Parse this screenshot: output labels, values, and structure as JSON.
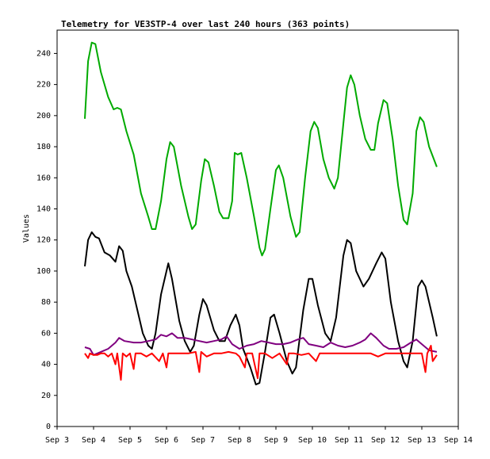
{
  "chart_data": {
    "type": "line",
    "title": "Telemetry for VE3STP-4 over last 240 hours (363 points)",
    "ylabel": "Values",
    "xlim": [
      0,
      11
    ],
    "ylim": [
      0,
      255
    ],
    "xticks": [
      {
        "value": 0,
        "label": "Sep 3"
      },
      {
        "value": 1,
        "label": "Sep 4"
      },
      {
        "value": 2,
        "label": "Sep 5"
      },
      {
        "value": 3,
        "label": "Sep 6"
      },
      {
        "value": 4,
        "label": "Sep 7"
      },
      {
        "value": 5,
        "label": "Sep 8"
      },
      {
        "value": 6,
        "label": "Sep 9"
      },
      {
        "value": 7,
        "label": "Sep 10"
      },
      {
        "value": 8,
        "label": "Sep 11"
      },
      {
        "value": 9,
        "label": "Sep 12"
      },
      {
        "value": 10,
        "label": "Sep 13"
      },
      {
        "value": 11,
        "label": "Sep 14"
      }
    ],
    "yticks": [
      0,
      20,
      40,
      60,
      80,
      100,
      120,
      140,
      160,
      180,
      200,
      220,
      240
    ],
    "series": [
      {
        "color": "#00aa00",
        "x": [
          0.76,
          0.85,
          0.95,
          1.05,
          1.2,
          1.4,
          1.55,
          1.65,
          1.75,
          1.9,
          2.1,
          2.3,
          2.5,
          2.6,
          2.7,
          2.85,
          3.0,
          3.1,
          3.2,
          3.4,
          3.6,
          3.7,
          3.8,
          3.95,
          4.05,
          4.15,
          4.3,
          4.45,
          4.55,
          4.7,
          4.8,
          4.87,
          4.95,
          5.05,
          5.2,
          5.4,
          5.55,
          5.62,
          5.7,
          5.85,
          6.0,
          6.08,
          6.2,
          6.4,
          6.55,
          6.65,
          6.8,
          6.95,
          7.05,
          7.15,
          7.3,
          7.45,
          7.6,
          7.7,
          7.85,
          7.95,
          8.05,
          8.15,
          8.3,
          8.45,
          8.6,
          8.7,
          8.8,
          8.95,
          9.05,
          9.2,
          9.35,
          9.5,
          9.6,
          9.75,
          9.85,
          9.95,
          10.05,
          10.2,
          10.41
        ],
        "values": [
          198,
          235,
          247,
          246,
          228,
          212,
          204,
          205,
          204,
          190,
          175,
          150,
          135,
          127,
          127,
          145,
          172,
          183,
          180,
          155,
          135,
          127,
          130,
          158,
          172,
          170,
          155,
          138,
          134,
          134,
          145,
          176,
          175,
          176,
          160,
          135,
          115,
          110,
          114,
          140,
          165,
          168,
          160,
          135,
          122,
          125,
          160,
          190,
          196,
          192,
          172,
          160,
          153,
          160,
          195,
          218,
          226,
          220,
          200,
          185,
          178,
          178,
          195,
          210,
          208,
          185,
          155,
          133,
          130,
          150,
          190,
          199,
          196,
          180,
          167
        ]
      },
      {
        "color": "#000000",
        "x": [
          0.76,
          0.85,
          0.95,
          1.05,
          1.15,
          1.3,
          1.45,
          1.6,
          1.7,
          1.8,
          1.9,
          2.05,
          2.2,
          2.35,
          2.5,
          2.6,
          2.7,
          2.85,
          3.0,
          3.05,
          3.15,
          3.35,
          3.5,
          3.65,
          3.75,
          3.9,
          4.0,
          4.1,
          4.3,
          4.45,
          4.6,
          4.75,
          4.9,
          5.0,
          5.1,
          5.3,
          5.45,
          5.55,
          5.7,
          5.85,
          5.95,
          6.1,
          6.3,
          6.45,
          6.55,
          6.75,
          6.9,
          7.0,
          7.15,
          7.35,
          7.5,
          7.65,
          7.85,
          7.95,
          8.05,
          8.2,
          8.4,
          8.55,
          8.75,
          8.9,
          9.0,
          9.15,
          9.35,
          9.5,
          9.6,
          9.75,
          9.9,
          10.0,
          10.1,
          10.3,
          10.41
        ],
        "values": [
          103,
          120,
          125,
          122,
          121,
          112,
          110,
          106,
          116,
          113,
          100,
          90,
          75,
          60,
          52,
          50,
          60,
          85,
          100,
          105,
          95,
          68,
          55,
          48,
          52,
          72,
          82,
          78,
          62,
          55,
          55,
          65,
          72,
          65,
          50,
          38,
          27,
          28,
          48,
          70,
          72,
          60,
          42,
          34,
          38,
          75,
          95,
          95,
          78,
          60,
          55,
          70,
          110,
          120,
          118,
          100,
          90,
          95,
          105,
          112,
          108,
          80,
          55,
          42,
          38,
          55,
          90,
          94,
          90,
          70,
          58
        ]
      },
      {
        "color": "#800080",
        "x": [
          0.76,
          0.9,
          1.0,
          1.2,
          1.4,
          1.6,
          1.7,
          1.85,
          2.1,
          2.3,
          2.5,
          2.7,
          2.85,
          3.0,
          3.15,
          3.3,
          3.5,
          3.7,
          3.9,
          4.1,
          4.3,
          4.5,
          4.65,
          4.8,
          5.0,
          5.2,
          5.4,
          5.6,
          5.8,
          6.0,
          6.2,
          6.4,
          6.6,
          6.75,
          6.9,
          7.1,
          7.3,
          7.5,
          7.7,
          7.9,
          8.1,
          8.3,
          8.45,
          8.6,
          8.75,
          8.95,
          9.1,
          9.3,
          9.5,
          9.7,
          9.85,
          10.0,
          10.2,
          10.41
        ],
        "values": [
          51,
          50,
          46,
          48,
          50,
          54,
          57,
          55,
          54,
          54,
          55,
          56,
          59,
          58,
          60,
          57,
          57,
          56,
          55,
          54,
          55,
          56,
          58,
          53,
          50,
          52,
          53,
          55,
          54,
          53,
          53,
          54,
          56,
          57,
          53,
          52,
          51,
          54,
          52,
          51,
          52,
          54,
          56,
          60,
          57,
          52,
          50,
          50,
          51,
          54,
          56,
          53,
          49,
          48
        ]
      },
      {
        "color": "#ff0000",
        "x": [
          0.76,
          0.85,
          0.9,
          1.0,
          1.1,
          1.2,
          1.3,
          1.4,
          1.5,
          1.6,
          1.65,
          1.75,
          1.8,
          1.9,
          2.0,
          2.1,
          2.15,
          2.3,
          2.45,
          2.6,
          2.8,
          2.9,
          3.0,
          3.05,
          3.2,
          3.4,
          3.6,
          3.8,
          3.9,
          3.95,
          4.1,
          4.3,
          4.5,
          4.7,
          4.9,
          5.0,
          5.15,
          5.2,
          5.35,
          5.5,
          5.55,
          5.7,
          5.9,
          6.1,
          6.3,
          6.35,
          6.5,
          6.7,
          6.9,
          7.1,
          7.2,
          7.4,
          7.6,
          7.8,
          8.0,
          8.2,
          8.4,
          8.6,
          8.8,
          9.0,
          9.2,
          9.4,
          9.6,
          9.8,
          10.0,
          10.1,
          10.15,
          10.25,
          10.3,
          10.41
        ],
        "values": [
          47,
          44,
          47,
          46,
          46,
          47,
          47,
          45,
          47,
          40,
          47,
          30,
          47,
          45,
          47,
          37,
          47,
          47,
          45,
          47,
          42,
          47,
          38,
          47,
          47,
          47,
          47,
          48,
          35,
          48,
          45,
          47,
          47,
          48,
          47,
          45,
          38,
          47,
          47,
          31,
          47,
          47,
          44,
          47,
          40,
          47,
          47,
          46,
          47,
          42,
          47,
          47,
          47,
          47,
          47,
          47,
          47,
          47,
          45,
          47,
          47,
          47,
          47,
          47,
          47,
          35,
          47,
          52,
          42,
          46
        ]
      }
    ]
  }
}
